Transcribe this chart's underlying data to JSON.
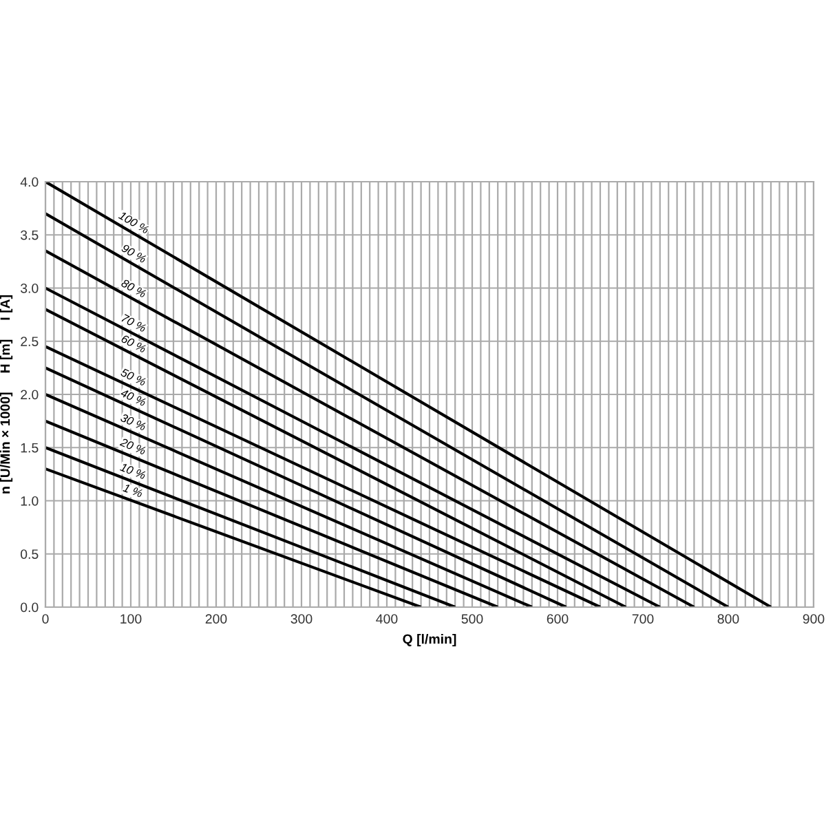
{
  "chart_data": {
    "type": "line",
    "xlabel": "Q [l/min]",
    "ylabel": "n [U/Min × 1000]     H [m]     I [A]",
    "xlim": [
      0,
      900
    ],
    "ylim": [
      0,
      4.0
    ],
    "xticks": [
      0,
      {
        "value": 10,
        "label": null
      },
      {
        "value": 20,
        "label": null
      },
      {
        "value": 30,
        "label": null
      },
      {
        "value": 40,
        "label": null
      },
      {
        "value": 50,
        "label": null
      },
      {
        "value": 60,
        "label": null
      },
      {
        "value": 70,
        "label": null
      },
      {
        "value": 80,
        "label": null
      },
      {
        "value": 90,
        "label": null
      },
      100,
      {
        "value": 110,
        "label": null
      },
      {
        "value": 120,
        "label": null
      },
      {
        "value": 130,
        "label": null
      },
      {
        "value": 140,
        "label": null
      },
      {
        "value": 150,
        "label": null
      },
      {
        "value": 160,
        "label": null
      },
      {
        "value": 170,
        "label": null
      },
      {
        "value": 180,
        "label": null
      },
      {
        "value": 190,
        "label": null
      },
      200,
      {
        "value": 210,
        "label": null
      },
      {
        "value": 220,
        "label": null
      },
      {
        "value": 230,
        "label": null
      },
      {
        "value": 240,
        "label": null
      },
      {
        "value": 250,
        "label": null
      },
      {
        "value": 260,
        "label": null
      },
      {
        "value": 270,
        "label": null
      },
      {
        "value": 280,
        "label": null
      },
      {
        "value": 290,
        "label": null
      },
      300,
      {
        "value": 310,
        "label": null
      },
      {
        "value": 320,
        "label": null
      },
      {
        "value": 330,
        "label": null
      },
      {
        "value": 340,
        "label": null
      },
      {
        "value": 350,
        "label": null
      },
      {
        "value": 360,
        "label": null
      },
      {
        "value": 370,
        "label": null
      },
      {
        "value": 380,
        "label": null
      },
      {
        "value": 390,
        "label": null
      },
      400,
      {
        "value": 410,
        "label": null
      },
      {
        "value": 420,
        "label": null
      },
      {
        "value": 430,
        "label": null
      },
      {
        "value": 440,
        "label": null
      },
      {
        "value": 450,
        "label": null
      },
      {
        "value": 460,
        "label": null
      },
      {
        "value": 470,
        "label": null
      },
      {
        "value": 480,
        "label": null
      },
      {
        "value": 490,
        "label": null
      },
      500,
      {
        "value": 510,
        "label": null
      },
      {
        "value": 520,
        "label": null
      },
      {
        "value": 530,
        "label": null
      },
      {
        "value": 540,
        "label": null
      },
      {
        "value": 550,
        "label": null
      },
      {
        "value": 560,
        "label": null
      },
      {
        "value": 570,
        "label": null
      },
      {
        "value": 580,
        "label": null
      },
      {
        "value": 590,
        "label": null
      },
      600,
      {
        "value": 610,
        "label": null
      },
      {
        "value": 620,
        "label": null
      },
      {
        "value": 630,
        "label": null
      },
      {
        "value": 640,
        "label": null
      },
      {
        "value": 650,
        "label": null
      },
      {
        "value": 660,
        "label": null
      },
      {
        "value": 670,
        "label": null
      },
      {
        "value": 680,
        "label": null
      },
      {
        "value": 690,
        "label": null
      },
      700,
      {
        "value": 710,
        "label": null
      },
      {
        "value": 720,
        "label": null
      },
      {
        "value": 730,
        "label": null
      },
      {
        "value": 740,
        "label": null
      },
      {
        "value": 750,
        "label": null
      },
      {
        "value": 760,
        "label": null
      },
      {
        "value": 770,
        "label": null
      },
      {
        "value": 780,
        "label": null
      },
      {
        "value": 790,
        "label": null
      },
      800,
      {
        "value": 810,
        "label": null
      },
      {
        "value": 820,
        "label": null
      },
      {
        "value": 830,
        "label": null
      },
      {
        "value": 840,
        "label": null
      },
      {
        "value": 850,
        "label": null
      },
      {
        "value": 860,
        "label": null
      },
      {
        "value": 870,
        "label": null
      },
      {
        "value": 880,
        "label": null
      },
      {
        "value": 890,
        "label": null
      },
      900
    ],
    "yticks": [
      {
        "value": 0,
        "label": "0.0"
      },
      0.5,
      {
        "value": 1,
        "label": "1.0"
      },
      1.5,
      {
        "value": 2,
        "label": "2.0"
      },
      2.5,
      {
        "value": 3,
        "label": "3.0"
      },
      3.5,
      {
        "value": 4,
        "label": "4.0"
      }
    ],
    "grid": true,
    "legend": false,
    "line_style": "solid",
    "marker": "none",
    "series": [
      {
        "name": "100 %",
        "color": "#000000",
        "x": [
          0,
          850
        ],
        "values": [
          4.0,
          0
        ]
      },
      {
        "name": "90 %",
        "color": "#000000",
        "x": [
          0,
          800
        ],
        "values": [
          3.7,
          0
        ]
      },
      {
        "name": "80 %",
        "color": "#000000",
        "x": [
          0,
          760
        ],
        "values": [
          3.35,
          0
        ]
      },
      {
        "name": "70 %",
        "color": "#000000",
        "x": [
          0,
          720
        ],
        "values": [
          3.0,
          0
        ]
      },
      {
        "name": "60 %",
        "color": "#000000",
        "x": [
          0,
          680
        ],
        "values": [
          2.8,
          0
        ]
      },
      {
        "name": "50 %",
        "color": "#000000",
        "x": [
          0,
          650
        ],
        "values": [
          2.45,
          0
        ]
      },
      {
        "name": "40 %",
        "color": "#000000",
        "x": [
          0,
          610
        ],
        "values": [
          2.25,
          0
        ]
      },
      {
        "name": "30 %",
        "color": "#000000",
        "x": [
          0,
          570
        ],
        "values": [
          2.0,
          0
        ]
      },
      {
        "name": "20 %",
        "color": "#000000",
        "x": [
          0,
          530
        ],
        "values": [
          1.75,
          0
        ]
      },
      {
        "name": "10 %",
        "color": "#000000",
        "x": [
          0,
          480
        ],
        "values": [
          1.5,
          0
        ]
      },
      {
        "name": "1 %",
        "color": "#000000",
        "x": [
          0,
          440
        ],
        "values": [
          1.3,
          0
        ]
      }
    ]
  }
}
